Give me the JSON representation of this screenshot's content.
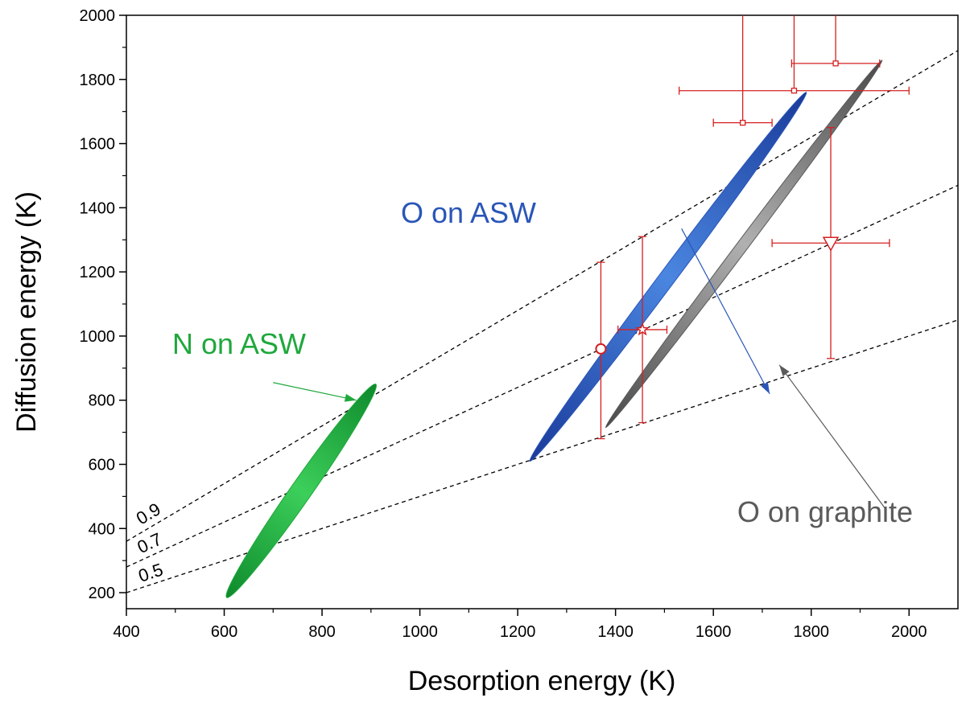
{
  "chart_data": {
    "type": "scatter",
    "xlabel": "Desorption energy (K)",
    "ylabel": "Diffusion energy (K)",
    "xlim": [
      400,
      2100
    ],
    "ylim": [
      150,
      2000
    ],
    "xticks": [
      400,
      600,
      800,
      1000,
      1200,
      1400,
      1600,
      1800,
      2000
    ],
    "yticks": [
      200,
      400,
      600,
      800,
      1000,
      1200,
      1400,
      1600,
      1800,
      2000
    ],
    "grid": false,
    "colors": {
      "n_asw": "#1fa83c",
      "o_asw": "#2a56b8",
      "o_graphite": "#7a7a7a",
      "points": "#d42020",
      "ratio_lines": "#000000"
    },
    "ratio_lines": [
      {
        "ratio": 0.9,
        "label": "0.9"
      },
      {
        "ratio": 0.7,
        "label": "0.7"
      },
      {
        "ratio": 0.5,
        "label": "0.5"
      }
    ],
    "regions": [
      {
        "label": "N on ASW",
        "color": "#1fa83c",
        "x": [
          605,
          910
        ],
        "y": [
          185,
          850
        ],
        "arrow_from": [
          700,
          855
        ],
        "arrow_to": [
          870,
          800
        ]
      },
      {
        "label": "O on ASW",
        "color": "#2a56b8",
        "x": [
          1225,
          1790
        ],
        "y": [
          610,
          1760
        ],
        "arrow_from": [
          1535,
          1335
        ],
        "arrow_to": [
          1715,
          820
        ]
      },
      {
        "label": "O on graphite",
        "color": "#5a5a5a",
        "x": [
          1380,
          1945
        ],
        "y": [
          715,
          1860
        ],
        "arrow_from": [
          1950,
          465
        ],
        "arrow_to": [
          1735,
          910
        ]
      }
    ],
    "points": [
      {
        "marker": "circle",
        "x": 1370,
        "y": 960,
        "yerr": [
          680,
          1230
        ]
      },
      {
        "marker": "star",
        "x": 1455,
        "y": 1020,
        "xerr": [
          1405,
          1505
        ],
        "yerr": [
          730,
          1310
        ]
      },
      {
        "marker": "triangle",
        "x": 1840,
        "y": 1290,
        "xerr": [
          1720,
          1960
        ],
        "yerr": [
          930,
          1650
        ]
      },
      {
        "marker": "square",
        "x": 1660,
        "y": 1665,
        "xerr": [
          1600,
          1720
        ],
        "yerr": [
          1665,
          2000
        ]
      },
      {
        "marker": "square",
        "x": 1765,
        "y": 1765,
        "xerr": [
          1530,
          2000
        ],
        "yerr": [
          1765,
          2000
        ]
      },
      {
        "marker": "square",
        "x": 1850,
        "y": 1850,
        "xerr": [
          1760,
          1940
        ],
        "yerr": [
          1850,
          2000
        ]
      }
    ]
  }
}
